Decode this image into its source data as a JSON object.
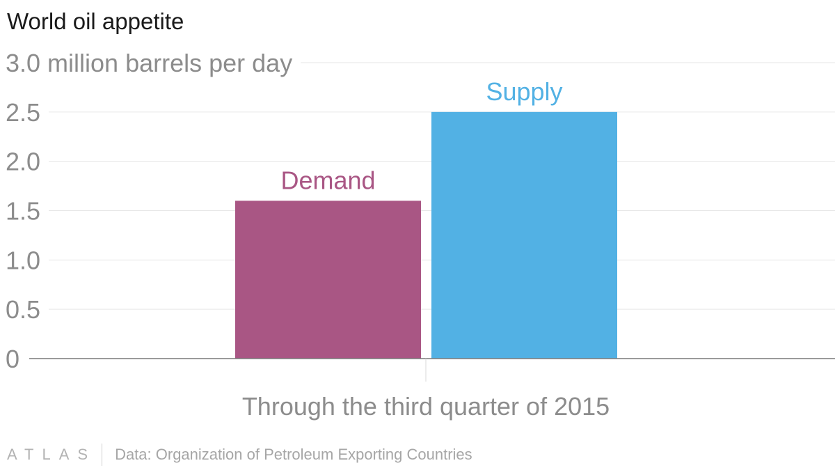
{
  "title": "World oil appetite",
  "chart_data": {
    "type": "bar",
    "category": "Through the third quarter of 2015",
    "bars": [
      {
        "name": "Demand",
        "value": 1.6,
        "color": "#a95684"
      },
      {
        "name": "Supply",
        "value": 2.5,
        "color": "#52b1e4"
      }
    ],
    "ylim": [
      0,
      3.0
    ],
    "yticks": [
      0,
      0.5,
      1.0,
      1.5,
      2.0,
      2.5,
      3.0
    ],
    "ytick_labels": [
      "0",
      "0.5",
      "1.0",
      "1.5",
      "2.0",
      "2.5",
      "3.0 million barrels per day"
    ],
    "grid": true,
    "legend": "none"
  },
  "footer": {
    "brand": "ATLAS",
    "source": "Data: Organization of Petroleum Exporting Countries"
  }
}
